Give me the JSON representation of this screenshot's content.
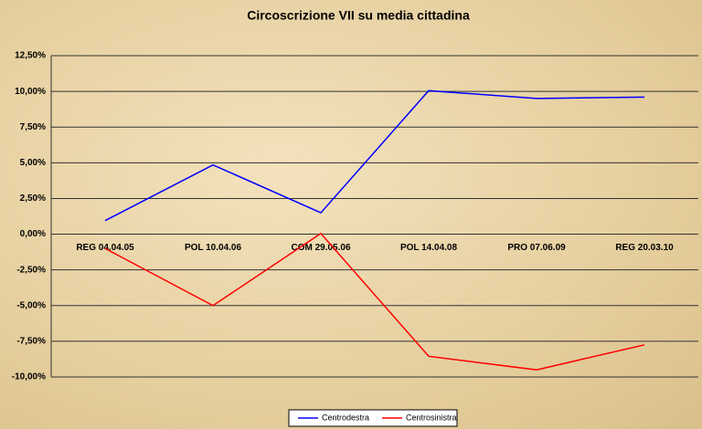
{
  "chart_data": {
    "type": "line",
    "title": "Circoscrizione VII su media cittadina",
    "categories": [
      "REG 04.04.05",
      "POL 10.04.06",
      "COM 29.05.06",
      "POL 14.04.08",
      "PRO 07.06.09",
      "REG 20.03.10"
    ],
    "series": [
      {
        "name": "Centrodestra",
        "color": "#0000ff",
        "values": [
          0.95,
          4.85,
          1.5,
          10.05,
          9.5,
          9.6
        ]
      },
      {
        "name": "Centrosinistra",
        "color": "#ff0000",
        "values": [
          -1.0,
          -5.0,
          0.05,
          -8.55,
          -9.5,
          -7.75
        ]
      }
    ],
    "ylim": [
      -10,
      12.5
    ],
    "yticks": [
      {
        "value": -10,
        "label": "-10,00%"
      },
      {
        "value": -7.5,
        "label": "-7,50%"
      },
      {
        "value": -5,
        "label": "-5,00%"
      },
      {
        "value": -2.5,
        "label": "-2,50%"
      },
      {
        "value": 0,
        "label": "0,00%"
      },
      {
        "value": 2.5,
        "label": "2,50%"
      },
      {
        "value": 5,
        "label": "5,00%"
      },
      {
        "value": 7.5,
        "label": "7,50%"
      },
      {
        "value": 10,
        "label": "10,00%"
      },
      {
        "value": 12.5,
        "label": "12,50%"
      }
    ],
    "grid": true,
    "legend": "bottom"
  }
}
